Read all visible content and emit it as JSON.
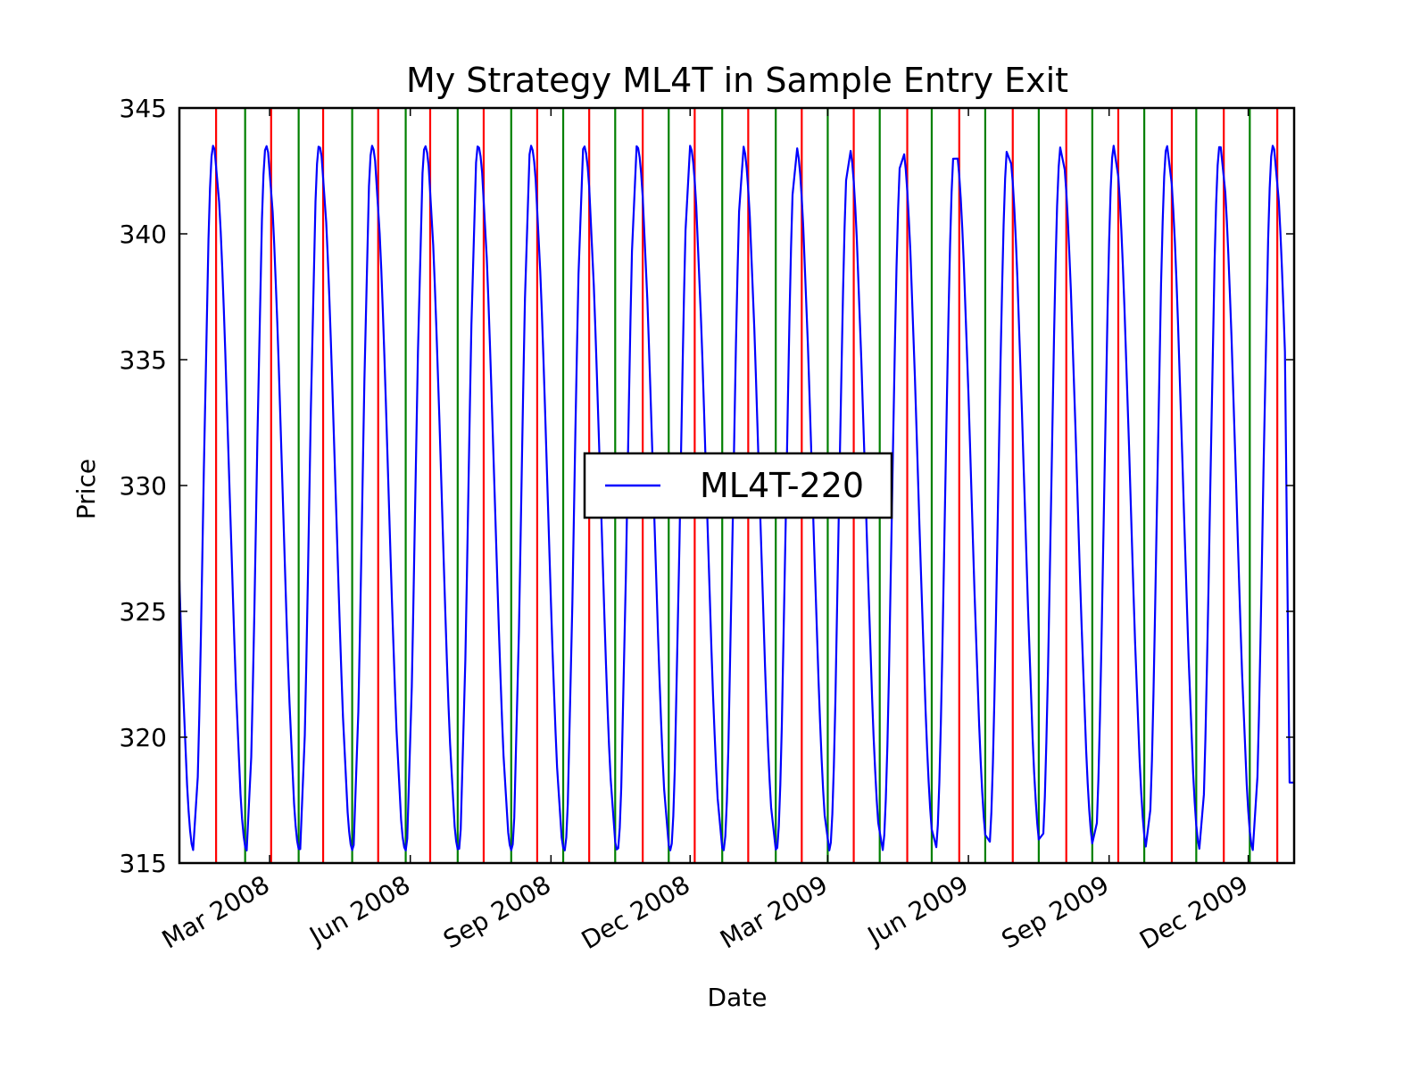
{
  "chart_data": {
    "type": "line",
    "title": "My Strategy ML4T in Sample Entry Exit",
    "xlabel": "Date",
    "ylabel": "Price",
    "ylim": [
      315,
      345
    ],
    "xlim": [
      "2008-01-02",
      "2009-12-31"
    ],
    "yticks": [
      315,
      320,
      325,
      330,
      335,
      340,
      345
    ],
    "xticks": [
      {
        "date": "2008-03-01",
        "label": "Mar 2008"
      },
      {
        "date": "2008-06-01",
        "label": "Jun 2008"
      },
      {
        "date": "2008-09-01",
        "label": "Sep 2008"
      },
      {
        "date": "2008-12-01",
        "label": "Dec 2008"
      },
      {
        "date": "2009-03-01",
        "label": "Mar 2009"
      },
      {
        "date": "2009-06-01",
        "label": "Jun 2009"
      },
      {
        "date": "2009-09-01",
        "label": "Sep 2009"
      },
      {
        "date": "2009-12-01",
        "label": "Dec 2009"
      }
    ],
    "legend_position": "center",
    "series": [
      {
        "name": "ML4T-220",
        "color": "#0000ff",
        "period_days": 34.65,
        "first_peak": "2008-01-24",
        "first_trough": "2008-02-15",
        "peak_value": 343.5,
        "trough_value": 315.5,
        "last_value": 318.2
      }
    ],
    "entry_lines": {
      "color": "#ff0000",
      "dates": [
        "2008-01-26",
        "2008-03-02",
        "2008-04-05",
        "2008-05-11",
        "2008-06-14",
        "2008-07-19",
        "2008-08-23",
        "2008-09-26",
        "2008-10-31",
        "2008-12-04",
        "2009-01-08",
        "2009-02-12",
        "2009-03-18",
        "2009-04-22",
        "2009-05-26",
        "2009-06-30",
        "2009-08-04",
        "2009-09-07",
        "2009-10-12",
        "2009-11-15",
        "2009-12-20"
      ]
    },
    "exit_lines": {
      "color": "#008000",
      "dates": [
        "2008-02-14",
        "2008-03-20",
        "2008-04-24",
        "2008-05-29",
        "2008-07-02",
        "2008-08-06",
        "2008-09-09",
        "2008-10-13",
        "2008-11-17",
        "2008-12-22",
        "2009-01-26",
        "2009-03-01",
        "2009-04-04",
        "2009-05-08",
        "2009-06-12",
        "2009-07-17",
        "2009-08-21",
        "2009-09-24",
        "2009-10-28",
        "2009-12-02"
      ]
    }
  }
}
